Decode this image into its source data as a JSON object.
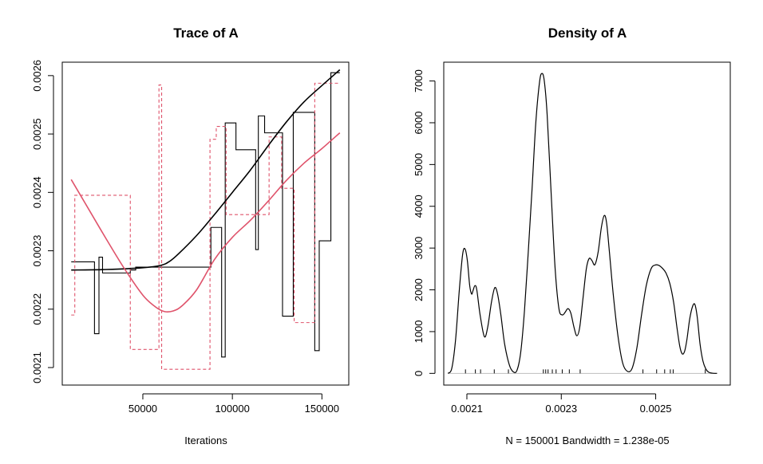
{
  "chart_data": [
    {
      "type": "line",
      "title": "Trace of A",
      "xlabel": "Iterations",
      "ylabel": "",
      "xlim": [
        5000,
        165000
      ],
      "ylim": [
        0.00207,
        0.002623
      ],
      "x_ticks": [
        {
          "value": 50000,
          "label": "50000"
        },
        {
          "value": 100000,
          "label": "100000"
        },
        {
          "value": 150000,
          "label": "150000"
        }
      ],
      "y_ticks": [
        {
          "value": 0.0021,
          "label": "0.0021"
        },
        {
          "value": 0.0022,
          "label": "0.0022"
        },
        {
          "value": 0.0023,
          "label": "0.0023"
        },
        {
          "value": 0.0024,
          "label": "0.0024"
        },
        {
          "value": 0.0025,
          "label": "0.0025"
        },
        {
          "value": 0.0026,
          "label": "0.0026"
        }
      ],
      "series": [
        {
          "color": "#000000",
          "style": "step",
          "points": [
            [
              10000,
              0.002281
            ],
            [
              23000,
              0.002281
            ],
            [
              23000,
              0.002158
            ],
            [
              25500,
              0.002158
            ],
            [
              25500,
              0.002289
            ],
            [
              27500,
              0.002289
            ],
            [
              27500,
              0.002262
            ],
            [
              43000,
              0.002262
            ],
            [
              43000,
              0.002267
            ],
            [
              46000,
              0.002267
            ],
            [
              46000,
              0.002272
            ],
            [
              88000,
              0.002272
            ],
            [
              88000,
              0.00234
            ],
            [
              94000,
              0.00234
            ],
            [
              94000,
              0.002118
            ],
            [
              96000,
              0.002118
            ],
            [
              96000,
              0.002519
            ],
            [
              102000,
              0.002519
            ],
            [
              102000,
              0.002473
            ],
            [
              113000,
              0.002473
            ],
            [
              113000,
              0.002302
            ],
            [
              114500,
              0.002302
            ],
            [
              114500,
              0.002531
            ],
            [
              118000,
              0.002531
            ],
            [
              118000,
              0.002502
            ],
            [
              128000,
              0.002502
            ],
            [
              128000,
              0.002188
            ],
            [
              134000,
              0.002188
            ],
            [
              134000,
              0.002537
            ],
            [
              146000,
              0.002537
            ],
            [
              146000,
              0.002129
            ],
            [
              148500,
              0.002129
            ],
            [
              148500,
              0.002317
            ],
            [
              155000,
              0.002317
            ],
            [
              155000,
              0.002605
            ],
            [
              160000,
              0.002605
            ]
          ]
        },
        {
          "color": "#DF536B",
          "style": "dashed-step",
          "points": [
            [
              10000,
              0.00219
            ],
            [
              12000,
              0.00219
            ],
            [
              12000,
              0.002395
            ],
            [
              43000,
              0.002395
            ],
            [
              43000,
              0.002131
            ],
            [
              59000,
              0.002131
            ],
            [
              59000,
              0.002584
            ],
            [
              60500,
              0.002584
            ],
            [
              60500,
              0.002097
            ],
            [
              87500,
              0.002097
            ],
            [
              87500,
              0.002491
            ],
            [
              91000,
              0.002491
            ],
            [
              91000,
              0.002513
            ],
            [
              96500,
              0.002513
            ],
            [
              96500,
              0.002362
            ],
            [
              120500,
              0.002362
            ],
            [
              120500,
              0.002495
            ],
            [
              127500,
              0.002495
            ],
            [
              127500,
              0.002407
            ],
            [
              134500,
              0.002407
            ],
            [
              134500,
              0.002177
            ],
            [
              146000,
              0.002177
            ],
            [
              146000,
              0.002587
            ],
            [
              160000,
              0.002587
            ]
          ]
        },
        {
          "color": "#000000",
          "style": "smooth",
          "points": [
            [
              10000,
              0.002267
            ],
            [
              30000,
              0.002268
            ],
            [
              50000,
              0.002271
            ],
            [
              60000,
              0.002275
            ],
            [
              65000,
              0.002282
            ],
            [
              70000,
              0.002295
            ],
            [
              80000,
              0.002326
            ],
            [
              90000,
              0.002362
            ],
            [
              100000,
              0.0024
            ],
            [
              110000,
              0.002438
            ],
            [
              120000,
              0.00248
            ],
            [
              130000,
              0.00252
            ],
            [
              140000,
              0.002555
            ],
            [
              150000,
              0.002583
            ],
            [
              160000,
              0.00261
            ]
          ]
        },
        {
          "color": "#DF536B",
          "style": "smooth",
          "points": [
            [
              10000,
              0.002422
            ],
            [
              20000,
              0.00237
            ],
            [
              30000,
              0.002318
            ],
            [
              40000,
              0.002268
            ],
            [
              50000,
              0.002224
            ],
            [
              57000,
              0.002204
            ],
            [
              62000,
              0.002196
            ],
            [
              67000,
              0.002197
            ],
            [
              72000,
              0.002206
            ],
            [
              80000,
              0.002233
            ],
            [
              90000,
              0.002285
            ],
            [
              100000,
              0.002323
            ],
            [
              110000,
              0.002352
            ],
            [
              120000,
              0.002385
            ],
            [
              130000,
              0.00242
            ],
            [
              140000,
              0.00245
            ],
            [
              150000,
              0.002475
            ],
            [
              160000,
              0.002502
            ]
          ]
        }
      ]
    },
    {
      "type": "area",
      "title": "Density of A",
      "xlabel": "N = 150001   Bandwidth = 1.238e-05",
      "ylabel": "",
      "xlim": [
        0.002051,
        0.002658
      ],
      "ylim": [
        -280,
        7450
      ],
      "x_ticks": [
        {
          "value": 0.0021,
          "label": "0.0021"
        },
        {
          "value": 0.0023,
          "label": "0.0023"
        },
        {
          "value": 0.0025,
          "label": "0.0025"
        }
      ],
      "y_ticks": [
        {
          "value": 0,
          "label": "0"
        },
        {
          "value": 1000,
          "label": "1000"
        },
        {
          "value": 2000,
          "label": "2000"
        },
        {
          "value": 3000,
          "label": "3000"
        },
        {
          "value": 4000,
          "label": "4000"
        },
        {
          "value": 5000,
          "label": "5000"
        },
        {
          "value": 6000,
          "label": "6000"
        },
        {
          "value": 7000,
          "label": "7000"
        }
      ],
      "baseline_color": "#BEBEBE",
      "density": {
        "color": "#000000",
        "points": [
          [
            0.00206,
            0
          ],
          [
            0.002068,
            120
          ],
          [
            0.002076,
            800
          ],
          [
            0.002084,
            2000
          ],
          [
            0.002091,
            2850
          ],
          [
            0.002096,
            2980
          ],
          [
            0.002101,
            2700
          ],
          [
            0.002106,
            2100
          ],
          [
            0.00211,
            1900
          ],
          [
            0.002113,
            1980
          ],
          [
            0.002117,
            2100
          ],
          [
            0.002121,
            2000
          ],
          [
            0.002128,
            1400
          ],
          [
            0.002137,
            880
          ],
          [
            0.002144,
            1100
          ],
          [
            0.002152,
            1700
          ],
          [
            0.002159,
            2050
          ],
          [
            0.002165,
            1900
          ],
          [
            0.002172,
            1400
          ],
          [
            0.00218,
            700
          ],
          [
            0.00219,
            200
          ],
          [
            0.002198,
            40
          ],
          [
            0.002206,
            70
          ],
          [
            0.002214,
            500
          ],
          [
            0.002222,
            1500
          ],
          [
            0.00223,
            2900
          ],
          [
            0.002238,
            4400
          ],
          [
            0.002246,
            6000
          ],
          [
            0.002254,
            6980
          ],
          [
            0.002259,
            7180
          ],
          [
            0.002264,
            7000
          ],
          [
            0.00227,
            6200
          ],
          [
            0.002279,
            4200
          ],
          [
            0.002287,
            2500
          ],
          [
            0.002295,
            1550
          ],
          [
            0.002302,
            1400
          ],
          [
            0.002308,
            1460
          ],
          [
            0.002314,
            1550
          ],
          [
            0.00232,
            1450
          ],
          [
            0.002327,
            1100
          ],
          [
            0.002333,
            900
          ],
          [
            0.002339,
            1100
          ],
          [
            0.002346,
            1800
          ],
          [
            0.002353,
            2500
          ],
          [
            0.002359,
            2750
          ],
          [
            0.002365,
            2700
          ],
          [
            0.002371,
            2600
          ],
          [
            0.002378,
            2900
          ],
          [
            0.002385,
            3500
          ],
          [
            0.002391,
            3780
          ],
          [
            0.002396,
            3600
          ],
          [
            0.002402,
            2900
          ],
          [
            0.00241,
            1900
          ],
          [
            0.00242,
            900
          ],
          [
            0.00243,
            250
          ],
          [
            0.00244,
            50
          ],
          [
            0.00245,
            120
          ],
          [
            0.00246,
            600
          ],
          [
            0.00247,
            1400
          ],
          [
            0.00248,
            2100
          ],
          [
            0.00249,
            2500
          ],
          [
            0.002498,
            2590
          ],
          [
            0.002506,
            2590
          ],
          [
            0.002514,
            2520
          ],
          [
            0.002522,
            2400
          ],
          [
            0.00253,
            2150
          ],
          [
            0.002538,
            1700
          ],
          [
            0.002545,
            1100
          ],
          [
            0.002551,
            650
          ],
          [
            0.002556,
            470
          ],
          [
            0.002561,
            520
          ],
          [
            0.002566,
            800
          ],
          [
            0.002572,
            1300
          ],
          [
            0.002578,
            1600
          ],
          [
            0.002583,
            1650
          ],
          [
            0.002588,
            1350
          ],
          [
            0.002594,
            700
          ],
          [
            0.0026,
            300
          ],
          [
            0.002606,
            110
          ],
          [
            0.002612,
            30
          ],
          [
            0.00262,
            5
          ],
          [
            0.00263,
            0
          ]
        ]
      },
      "rug": [
        0.002097,
        0.002118,
        0.002129,
        0.002158,
        0.002188,
        0.002262,
        0.002267,
        0.002272,
        0.002281,
        0.002289,
        0.002302,
        0.002317,
        0.00234,
        0.002473,
        0.002502,
        0.002519,
        0.002531,
        0.002537,
        0.002605
      ]
    }
  ]
}
